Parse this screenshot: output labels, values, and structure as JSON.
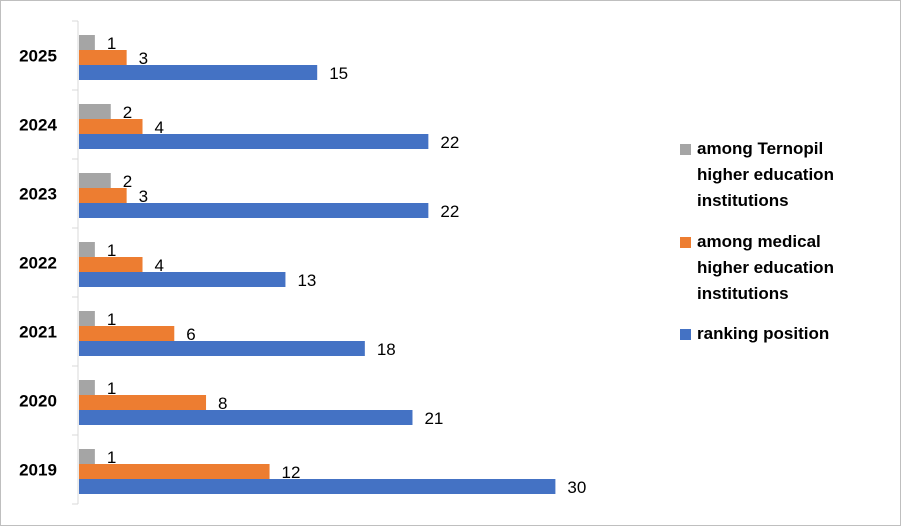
{
  "chart_data": {
    "type": "bar",
    "orientation": "horizontal",
    "categories": [
      "2025",
      "2024",
      "2023",
      "2022",
      "2021",
      "2020",
      "2019"
    ],
    "series": [
      {
        "name": "among Ternopil higher education institutions",
        "legend_lines": [
          "among Ternopil",
          "higher education",
          "institutions"
        ],
        "color": "#a5a5a5",
        "values": [
          1,
          2,
          2,
          1,
          1,
          1,
          1
        ]
      },
      {
        "name": "among medical higher education institutions",
        "legend_lines": [
          "among medical",
          "higher education",
          "institutions"
        ],
        "color": "#ed7d31",
        "values": [
          3,
          4,
          3,
          4,
          6,
          8,
          12
        ]
      },
      {
        "name": "ranking position",
        "legend_lines": [
          "ranking position"
        ],
        "color": "#4472c4",
        "values": [
          15,
          22,
          22,
          13,
          18,
          21,
          30
        ]
      }
    ],
    "xlim": [
      0,
      30
    ],
    "grid": false,
    "legend_position": "right",
    "data_labels": true
  }
}
